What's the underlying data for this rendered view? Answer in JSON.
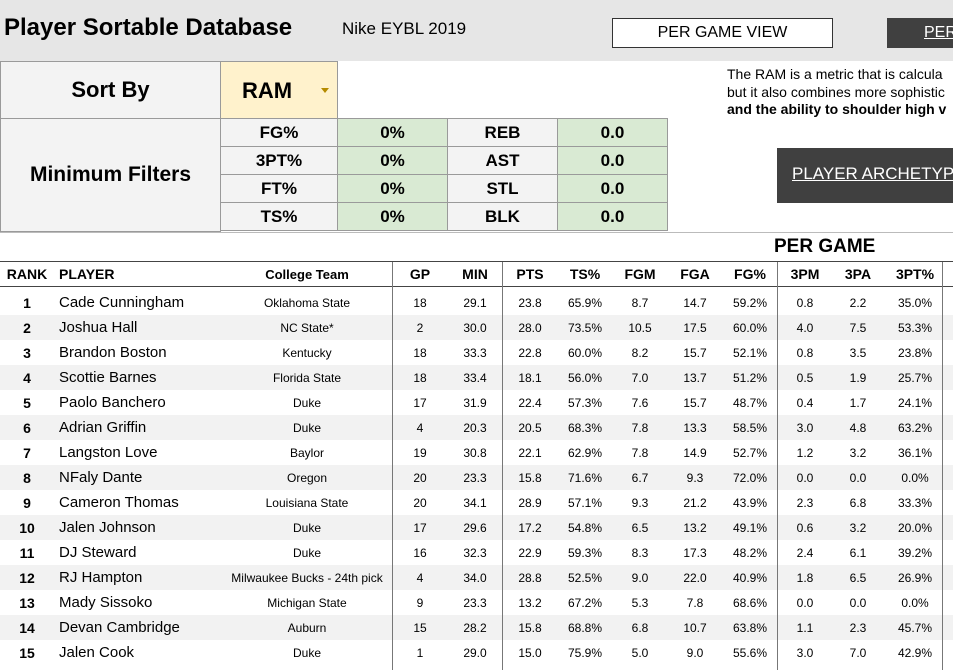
{
  "header": {
    "title": "Player Sortable Database",
    "subtitle": "Nike EYBL 2019",
    "buttons": [
      "PER GAME VIEW",
      "PER"
    ]
  },
  "sort": {
    "label": "Sort By",
    "value": "RAM"
  },
  "description": [
    "The RAM is a metric that is calcula",
    "but it also combines more sophistic",
    "and the ability to shoulder high v"
  ],
  "archetype_button": "PLAYER ARCHETYP",
  "filters": {
    "label": "Minimum Filters",
    "rows": [
      [
        "FG%",
        "0%",
        "REB",
        "0.0"
      ],
      [
        "3PT%",
        "0%",
        "AST",
        "0.0"
      ],
      [
        "FT%",
        "0%",
        "STL",
        "0.0"
      ],
      [
        "TS%",
        "0%",
        "BLK",
        "0.0"
      ]
    ]
  },
  "section_label": "PER GAME",
  "table": {
    "columns": [
      "RANK",
      "PLAYER",
      "College Team",
      "GP",
      "MIN",
      "PTS",
      "TS%",
      "FGM",
      "FGA",
      "FG%",
      "3PM",
      "3PA",
      "3PT%"
    ],
    "rows": [
      [
        "1",
        "Cade Cunningham",
        "Oklahoma State",
        "18",
        "29.1",
        "23.8",
        "65.9%",
        "8.7",
        "14.7",
        "59.2%",
        "0.8",
        "2.2",
        "35.0%"
      ],
      [
        "2",
        "Joshua Hall",
        "NC State*",
        "2",
        "30.0",
        "28.0",
        "73.5%",
        "10.5",
        "17.5",
        "60.0%",
        "4.0",
        "7.5",
        "53.3%"
      ],
      [
        "3",
        "Brandon Boston",
        "Kentucky",
        "18",
        "33.3",
        "22.8",
        "60.0%",
        "8.2",
        "15.7",
        "52.1%",
        "0.8",
        "3.5",
        "23.8%"
      ],
      [
        "4",
        "Scottie Barnes",
        "Florida State",
        "18",
        "33.4",
        "18.1",
        "56.0%",
        "7.0",
        "13.7",
        "51.2%",
        "0.5",
        "1.9",
        "25.7%"
      ],
      [
        "5",
        "Paolo Banchero",
        "Duke",
        "17",
        "31.9",
        "22.4",
        "57.3%",
        "7.6",
        "15.7",
        "48.7%",
        "0.4",
        "1.7",
        "24.1%"
      ],
      [
        "6",
        "Adrian Griffin",
        "Duke",
        "4",
        "20.3",
        "20.5",
        "68.3%",
        "7.8",
        "13.3",
        "58.5%",
        "3.0",
        "4.8",
        "63.2%"
      ],
      [
        "7",
        "Langston Love",
        "Baylor",
        "19",
        "30.8",
        "22.1",
        "62.9%",
        "7.8",
        "14.9",
        "52.7%",
        "1.2",
        "3.2",
        "36.1%"
      ],
      [
        "8",
        "NFaly Dante",
        "Oregon",
        "20",
        "23.3",
        "15.8",
        "71.6%",
        "6.7",
        "9.3",
        "72.0%",
        "0.0",
        "0.0",
        "0.0%"
      ],
      [
        "9",
        "Cameron Thomas",
        "Louisiana State",
        "20",
        "34.1",
        "28.9",
        "57.1%",
        "9.3",
        "21.2",
        "43.9%",
        "2.3",
        "6.8",
        "33.3%"
      ],
      [
        "10",
        "Jalen Johnson",
        "Duke",
        "17",
        "29.6",
        "17.2",
        "54.8%",
        "6.5",
        "13.2",
        "49.1%",
        "0.6",
        "3.2",
        "20.0%"
      ],
      [
        "11",
        "DJ Steward",
        "Duke",
        "16",
        "32.3",
        "22.9",
        "59.3%",
        "8.3",
        "17.3",
        "48.2%",
        "2.4",
        "6.1",
        "39.2%"
      ],
      [
        "12",
        "RJ Hampton",
        "Milwaukee Bucks - 24th pick",
        "4",
        "34.0",
        "28.8",
        "52.5%",
        "9.0",
        "22.0",
        "40.9%",
        "1.8",
        "6.5",
        "26.9%"
      ],
      [
        "13",
        "Mady Sissoko",
        "Michigan State",
        "9",
        "23.3",
        "13.2",
        "67.2%",
        "5.3",
        "7.8",
        "68.6%",
        "0.0",
        "0.0",
        "0.0%"
      ],
      [
        "14",
        "Devan Cambridge",
        "Auburn",
        "15",
        "28.2",
        "15.8",
        "68.8%",
        "6.8",
        "10.7",
        "63.8%",
        "1.1",
        "2.3",
        "45.7%"
      ],
      [
        "15",
        "Jalen Cook",
        "Duke",
        "1",
        "29.0",
        "15.0",
        "75.9%",
        "5.0",
        "9.0",
        "55.6%",
        "3.0",
        "7.0",
        "42.9%"
      ]
    ]
  }
}
